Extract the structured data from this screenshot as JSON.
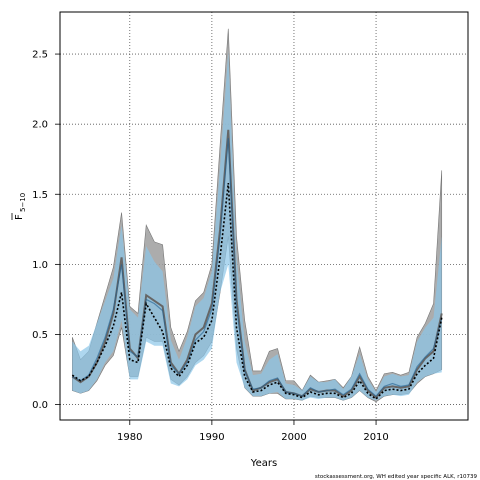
{
  "chart_data": {
    "type": "area",
    "title": "",
    "xlabel": "Years",
    "ylabel_main": "F",
    "ylabel_sub": "5−10",
    "footnote": "stockassessment.org, WH  edited  year  specific  ALK, r10739",
    "xlim": [
      1971.5,
      2021.2
    ],
    "ylim": [
      -0.11,
      2.8
    ],
    "xticks": [
      1980,
      1990,
      2000,
      2010
    ],
    "yticks": [
      0.0,
      0.5,
      1.0,
      1.5,
      2.0,
      2.5
    ],
    "ytick_labels": [
      "0.0",
      "0.5",
      "1.0",
      "1.5",
      "2.0",
      "2.5"
    ],
    "grid": true,
    "colors": {
      "grey_band": "#9e9e9e",
      "blue_band": "#8cc6e8",
      "grey_line": "#666666",
      "blue_line": "#1f5f8f",
      "dotted_line": "#000000",
      "grid": "#555555"
    },
    "years": [
      1973,
      1974,
      1975,
      1976,
      1977,
      1978,
      1979,
      1980,
      1981,
      1982,
      1983,
      1984,
      1985,
      1986,
      1987,
      1988,
      1989,
      1990,
      1991,
      1992,
      1993,
      1994,
      1995,
      1996,
      1997,
      1998,
      1999,
      2000,
      2001,
      2002,
      2003,
      2004,
      2005,
      2006,
      2007,
      2008,
      2009,
      2010,
      2011,
      2012,
      2013,
      2014,
      2015,
      2016,
      2017,
      2018
    ],
    "series": [
      {
        "name": "",
        "style": "grey",
        "estimate": [
          0.2,
          0.16,
          0.2,
          0.3,
          0.45,
          0.65,
          1.05,
          0.4,
          0.33,
          0.78,
          0.74,
          0.7,
          0.3,
          0.22,
          0.32,
          0.5,
          0.55,
          0.72,
          1.25,
          1.96,
          0.75,
          0.25,
          0.1,
          0.12,
          0.16,
          0.18,
          0.09,
          0.08,
          0.06,
          0.11,
          0.09,
          0.1,
          0.1,
          0.06,
          0.1,
          0.2,
          0.1,
          0.05,
          0.12,
          0.13,
          0.12,
          0.13,
          0.25,
          0.33,
          0.38,
          0.65
        ],
        "lower": [
          0.1,
          0.08,
          0.1,
          0.17,
          0.28,
          0.35,
          0.55,
          0.2,
          0.2,
          0.48,
          0.45,
          0.45,
          0.18,
          0.14,
          0.2,
          0.3,
          0.35,
          0.45,
          0.8,
          1.2,
          0.4,
          0.12,
          0.06,
          0.06,
          0.08,
          0.08,
          0.04,
          0.04,
          0.03,
          0.06,
          0.05,
          0.05,
          0.05,
          0.03,
          0.05,
          0.1,
          0.05,
          0.02,
          0.06,
          0.07,
          0.07,
          0.08,
          0.15,
          0.2,
          0.22,
          0.25
        ],
        "upper": [
          0.48,
          0.32,
          0.38,
          0.58,
          0.78,
          0.98,
          1.37,
          0.7,
          0.65,
          1.28,
          1.16,
          1.14,
          0.55,
          0.38,
          0.52,
          0.74,
          0.8,
          1.0,
          1.85,
          2.68,
          1.2,
          0.6,
          0.24,
          0.24,
          0.38,
          0.4,
          0.17,
          0.17,
          0.1,
          0.21,
          0.16,
          0.17,
          0.18,
          0.12,
          0.2,
          0.41,
          0.2,
          0.1,
          0.22,
          0.23,
          0.21,
          0.23,
          0.48,
          0.58,
          0.72,
          1.67
        ]
      },
      {
        "name": "",
        "style": "blue",
        "estimate": [
          0.2,
          0.17,
          0.21,
          0.33,
          0.48,
          0.68,
          1.0,
          0.38,
          0.34,
          0.75,
          0.72,
          0.67,
          0.28,
          0.22,
          0.3,
          0.46,
          0.52,
          0.68,
          1.2,
          1.9,
          0.7,
          0.24,
          0.11,
          0.12,
          0.17,
          0.19,
          0.09,
          0.08,
          0.06,
          0.12,
          0.09,
          0.1,
          0.11,
          0.07,
          0.11,
          0.22,
          0.11,
          0.06,
          0.13,
          0.15,
          0.13,
          0.14,
          0.27,
          0.34,
          0.4,
          0.62
        ],
        "lower": [
          0.1,
          0.08,
          0.1,
          0.18,
          0.3,
          0.38,
          0.6,
          0.18,
          0.18,
          0.45,
          0.42,
          0.42,
          0.15,
          0.13,
          0.18,
          0.28,
          0.32,
          0.4,
          0.8,
          1.0,
          0.3,
          0.12,
          0.06,
          0.06,
          0.08,
          0.09,
          0.04,
          0.04,
          0.03,
          0.05,
          0.04,
          0.05,
          0.05,
          0.03,
          0.05,
          0.1,
          0.05,
          0.03,
          0.06,
          0.07,
          0.06,
          0.07,
          0.16,
          0.2,
          0.22,
          0.23
        ],
        "upper": [
          0.45,
          0.38,
          0.42,
          0.58,
          0.74,
          0.9,
          1.28,
          0.68,
          0.62,
          1.13,
          1.02,
          0.95,
          0.46,
          0.32,
          0.48,
          0.7,
          0.76,
          0.95,
          1.7,
          2.52,
          1.05,
          0.45,
          0.21,
          0.22,
          0.32,
          0.36,
          0.15,
          0.14,
          0.1,
          0.2,
          0.16,
          0.16,
          0.18,
          0.11,
          0.2,
          0.36,
          0.18,
          0.09,
          0.2,
          0.22,
          0.2,
          0.21,
          0.45,
          0.55,
          0.62,
          1.2
        ]
      },
      {
        "name": "",
        "style": "dotted",
        "estimate": [
          0.21,
          0.17,
          0.2,
          0.3,
          0.42,
          0.56,
          0.8,
          0.32,
          0.3,
          0.72,
          0.62,
          0.52,
          0.26,
          0.2,
          0.28,
          0.44,
          0.48,
          0.6,
          1.05,
          1.58,
          0.55,
          0.2,
          0.09,
          0.1,
          0.14,
          0.16,
          0.08,
          0.07,
          0.05,
          0.09,
          0.07,
          0.08,
          0.08,
          0.05,
          0.08,
          0.17,
          0.08,
          0.04,
          0.1,
          0.11,
          0.1,
          0.11,
          0.22,
          0.28,
          0.33,
          0.62
        ]
      }
    ]
  }
}
